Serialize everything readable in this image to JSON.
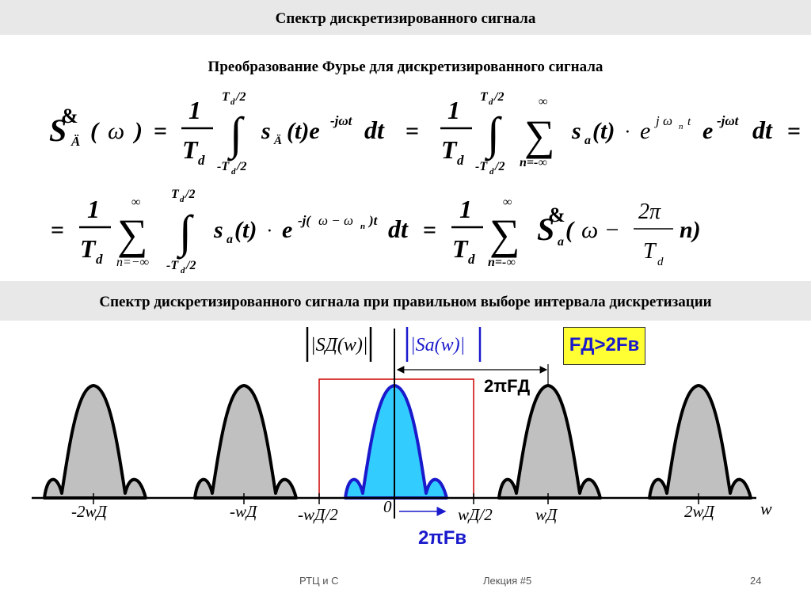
{
  "slide": {
    "title": "Спектр дискретизированного сигнала",
    "subtitle": "Преобразование Фурье для дискретизированного сигнала",
    "section_title": "Спектр дискретизированного сигнала при правильном выборе интервала дискретизации"
  },
  "diagram": {
    "label_sd": "|SД(w)|",
    "label_sa": "|Sa(w)|",
    "condition": "FД>2Fв",
    "period_label": "2πFД",
    "bandwidth_label": "2πFв",
    "axis_label": "w",
    "ticks": [
      "-2wД",
      "-wД",
      "-wД/2",
      "0",
      "wД/2",
      "wД",
      "2wД"
    ],
    "colors": {
      "replica_fill": "#c0c0c0",
      "baseband_fill": "#33ccff",
      "baseband_line": "#1a1acc",
      "window": "#cc0000",
      "condition_bg": "#ffff33"
    }
  },
  "footer": {
    "left": "РТЦ  и С",
    "center": "Лекция #5",
    "page": "24"
  }
}
